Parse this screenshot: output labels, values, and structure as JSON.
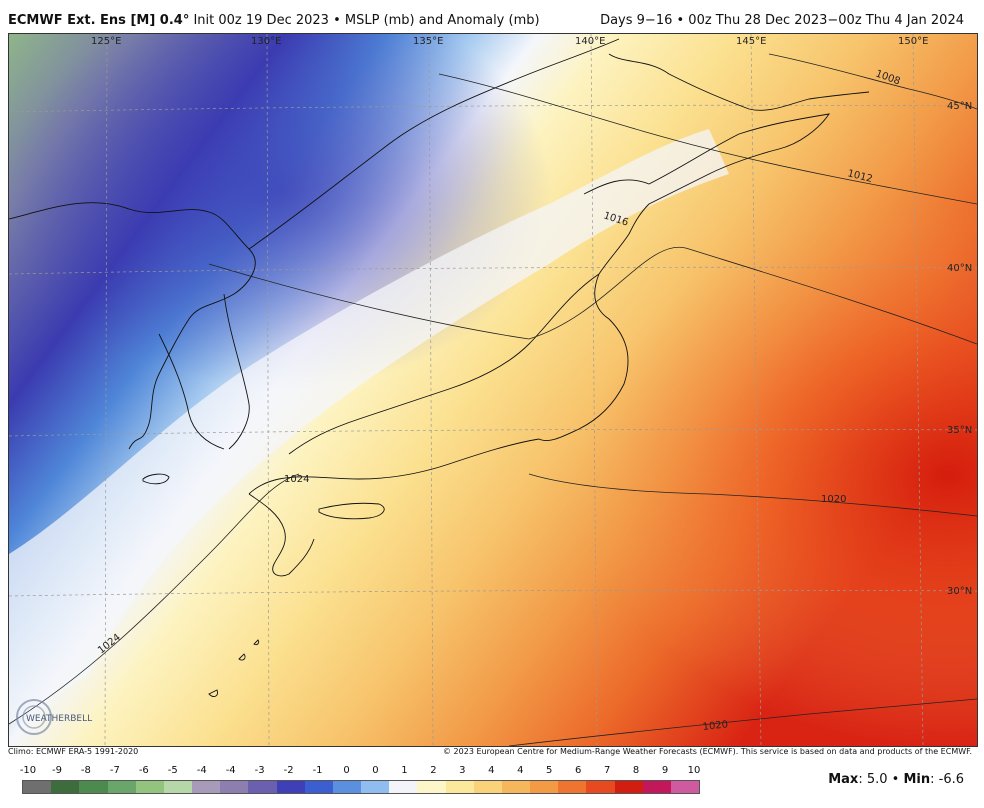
{
  "header": {
    "model": "ECMWF Ext. Ens [M] 0.4°",
    "init": "Init 00z 19 Dec 2023",
    "separator": "•",
    "field": "MSLP (mb) and Anomaly (mb)",
    "valid": "Days 9−16 • 00z Thu 28 Dec 2023−00z Thu 4 Jan 2024"
  },
  "map": {
    "longitude_labels": [
      "125°E",
      "130°E",
      "135°E",
      "140°E",
      "145°E",
      "150°E"
    ],
    "latitude_labels": [
      "45°N",
      "40°N",
      "35°N",
      "30°N"
    ],
    "isobar_labels": [
      "1008",
      "1012",
      "1016",
      "1020",
      "1024",
      "1024",
      "1020"
    ]
  },
  "footer": {
    "climo": "Climo: ECMWF ERA-5 1991-2020",
    "copyright": "© 2023 European Centre for Medium-Range Weather Forecasts (ECMWF). This service is based on data and products of the ECMWF."
  },
  "colorbar": {
    "labels": [
      "-10",
      "-9",
      "-8",
      "-7",
      "-6",
      "-5",
      "-4",
      "-4",
      "-3",
      "-2",
      "-1",
      "0",
      "0",
      "1",
      "2",
      "3",
      "4",
      "4",
      "5",
      "6",
      "7",
      "8",
      "9",
      "10"
    ],
    "colors": [
      "#6f6f6f",
      "#3d6d3d",
      "#4d8a4d",
      "#6aa66a",
      "#93c47d",
      "#b6d7a8",
      "#a89bb9",
      "#8c7fb0",
      "#6b5fb0",
      "#3f3fb8",
      "#3b5fd0",
      "#5b8fe0",
      "#8fbdf0",
      "#f2f4fa",
      "#fdf6c8",
      "#fbe89a",
      "#f9d27a",
      "#f6b75c",
      "#f39a45",
      "#ee7430",
      "#e64a1e",
      "#d21e10",
      "#c2185b",
      "#d05aa0"
    ]
  },
  "stats": {
    "max_label": "Max",
    "max_value": ": 5.0",
    "sep": "•",
    "min_label": "Min",
    "min_value": ": -6.6"
  },
  "logo": {
    "text": "WEATHERBELL"
  }
}
